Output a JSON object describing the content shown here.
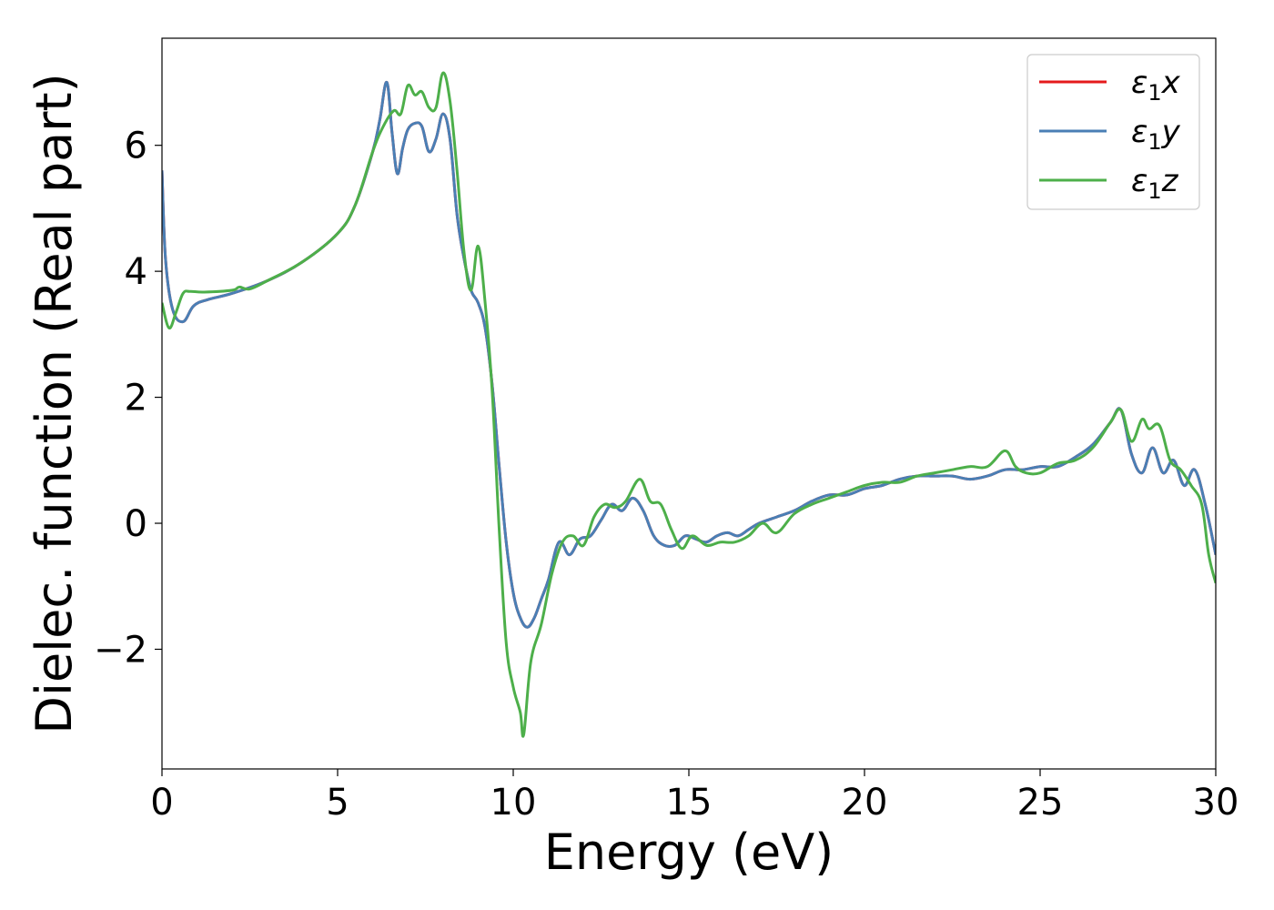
{
  "chart_data": {
    "type": "line",
    "title": "",
    "xlabel": "Energy (eV)",
    "ylabel": "Dielec. function (Real part)",
    "xlim": [
      0,
      30
    ],
    "ylim": [
      -3.9,
      7.7
    ],
    "xticks": [
      0,
      5,
      10,
      15,
      20,
      25,
      30
    ],
    "xtick_labels": [
      "0",
      "5",
      "10",
      "15",
      "20",
      "25",
      "30"
    ],
    "yticks": [
      -2,
      0,
      2,
      4,
      6
    ],
    "ytick_labels": [
      "−2",
      "0",
      "2",
      "4",
      "6"
    ],
    "grid": false,
    "legend_position": "top-right",
    "series": [
      {
        "name": "ε1x",
        "legend_main": "ε",
        "legend_sub": "1",
        "legend_var": "x",
        "color": "#e41a1c",
        "x": [
          0,
          0.1,
          0.3,
          0.6,
          0.9,
          1.3,
          2.0,
          3.0,
          4.0,
          5.0,
          5.5,
          6.0,
          6.2,
          6.4,
          6.55,
          6.7,
          6.85,
          7.0,
          7.2,
          7.4,
          7.6,
          7.8,
          8.0,
          8.2,
          8.4,
          8.6,
          8.8,
          9.0,
          9.2,
          9.4,
          9.6,
          9.8,
          10.0,
          10.2,
          10.4,
          10.6,
          10.8,
          11.0,
          11.3,
          11.6,
          11.9,
          12.2,
          12.5,
          12.8,
          13.1,
          13.4,
          13.7,
          14.0,
          14.3,
          14.6,
          14.9,
          15.2,
          15.5,
          15.8,
          16.1,
          16.4,
          16.7,
          17.0,
          17.5,
          18.0,
          18.5,
          19.0,
          19.5,
          20.0,
          20.5,
          21.0,
          21.5,
          22.0,
          22.5,
          23.0,
          23.5,
          24.0,
          24.5,
          25.0,
          25.5,
          26.0,
          26.5,
          27.0,
          27.3,
          27.6,
          27.9,
          28.2,
          28.5,
          28.8,
          29.1,
          29.4,
          29.7,
          30.0
        ],
        "values": [
          5.6,
          4.2,
          3.4,
          3.2,
          3.45,
          3.55,
          3.65,
          3.85,
          4.15,
          4.6,
          5.05,
          5.9,
          6.4,
          7.0,
          6.2,
          5.55,
          5.95,
          6.25,
          6.35,
          6.3,
          5.9,
          6.1,
          6.5,
          6.1,
          4.9,
          4.2,
          3.7,
          3.5,
          3.1,
          2.2,
          0.9,
          -0.3,
          -1.1,
          -1.5,
          -1.65,
          -1.5,
          -1.2,
          -0.9,
          -0.3,
          -0.5,
          -0.25,
          -0.2,
          0.05,
          0.3,
          0.2,
          0.4,
          0.2,
          -0.2,
          -0.35,
          -0.35,
          -0.2,
          -0.25,
          -0.3,
          -0.2,
          -0.15,
          -0.2,
          -0.1,
          0.0,
          0.1,
          0.2,
          0.35,
          0.45,
          0.45,
          0.55,
          0.6,
          0.7,
          0.75,
          0.75,
          0.75,
          0.7,
          0.75,
          0.85,
          0.85,
          0.9,
          0.9,
          1.05,
          1.25,
          1.6,
          1.8,
          1.1,
          0.8,
          1.2,
          0.8,
          1.0,
          0.6,
          0.85,
          0.3,
          -0.5
        ]
      },
      {
        "name": "ε1y",
        "legend_main": "ε",
        "legend_sub": "1",
        "legend_var": "y",
        "color": "#4a7fb5",
        "x": [
          0,
          0.1,
          0.3,
          0.6,
          0.9,
          1.3,
          2.0,
          3.0,
          4.0,
          5.0,
          5.5,
          6.0,
          6.2,
          6.4,
          6.55,
          6.7,
          6.85,
          7.0,
          7.2,
          7.4,
          7.6,
          7.8,
          8.0,
          8.2,
          8.4,
          8.6,
          8.8,
          9.0,
          9.2,
          9.4,
          9.6,
          9.8,
          10.0,
          10.2,
          10.4,
          10.6,
          10.8,
          11.0,
          11.3,
          11.6,
          11.9,
          12.2,
          12.5,
          12.8,
          13.1,
          13.4,
          13.7,
          14.0,
          14.3,
          14.6,
          14.9,
          15.2,
          15.5,
          15.8,
          16.1,
          16.4,
          16.7,
          17.0,
          17.5,
          18.0,
          18.5,
          19.0,
          19.5,
          20.0,
          20.5,
          21.0,
          21.5,
          22.0,
          22.5,
          23.0,
          23.5,
          24.0,
          24.5,
          25.0,
          25.5,
          26.0,
          26.5,
          27.0,
          27.3,
          27.6,
          27.9,
          28.2,
          28.5,
          28.8,
          29.1,
          29.4,
          29.7,
          30.0
        ],
        "values": [
          5.6,
          4.2,
          3.4,
          3.2,
          3.45,
          3.55,
          3.65,
          3.85,
          4.15,
          4.6,
          5.05,
          5.9,
          6.4,
          7.0,
          6.2,
          5.55,
          5.95,
          6.25,
          6.35,
          6.3,
          5.9,
          6.1,
          6.5,
          6.1,
          4.9,
          4.2,
          3.7,
          3.5,
          3.1,
          2.2,
          0.9,
          -0.3,
          -1.1,
          -1.5,
          -1.65,
          -1.5,
          -1.2,
          -0.9,
          -0.3,
          -0.5,
          -0.25,
          -0.2,
          0.05,
          0.3,
          0.2,
          0.4,
          0.2,
          -0.2,
          -0.35,
          -0.35,
          -0.2,
          -0.25,
          -0.3,
          -0.2,
          -0.15,
          -0.2,
          -0.1,
          0.0,
          0.1,
          0.2,
          0.35,
          0.45,
          0.45,
          0.55,
          0.6,
          0.7,
          0.75,
          0.75,
          0.75,
          0.7,
          0.75,
          0.85,
          0.85,
          0.9,
          0.9,
          1.05,
          1.25,
          1.6,
          1.8,
          1.1,
          0.8,
          1.2,
          0.8,
          1.0,
          0.6,
          0.85,
          0.3,
          -0.5
        ]
      },
      {
        "name": "ε1z",
        "legend_main": "ε",
        "legend_sub": "1",
        "legend_var": "z",
        "color": "#4daf4a",
        "x": [
          0,
          0.2,
          0.4,
          0.6,
          0.8,
          1.2,
          2.0,
          2.2,
          2.5,
          3.0,
          4.0,
          5.0,
          5.5,
          6.0,
          6.3,
          6.6,
          6.8,
          7.0,
          7.2,
          7.4,
          7.6,
          7.8,
          8.0,
          8.2,
          8.4,
          8.6,
          8.8,
          9.0,
          9.2,
          9.4,
          9.6,
          9.8,
          10.0,
          10.2,
          10.3,
          10.5,
          10.8,
          11.1,
          11.4,
          11.7,
          12.0,
          12.3,
          12.6,
          12.9,
          13.2,
          13.6,
          13.9,
          14.2,
          14.5,
          14.8,
          15.1,
          15.5,
          15.9,
          16.3,
          16.7,
          17.1,
          17.5,
          18.0,
          18.5,
          19.0,
          19.5,
          20.0,
          20.5,
          21.0,
          21.5,
          22.0,
          22.5,
          23.0,
          23.5,
          24.0,
          24.3,
          24.6,
          25.0,
          25.5,
          26.0,
          26.5,
          27.0,
          27.3,
          27.6,
          27.9,
          28.1,
          28.4,
          28.7,
          29.0,
          29.3,
          29.6,
          29.8,
          30.0
        ],
        "values": [
          3.5,
          3.1,
          3.35,
          3.65,
          3.68,
          3.67,
          3.7,
          3.75,
          3.72,
          3.85,
          4.15,
          4.6,
          5.05,
          5.9,
          6.3,
          6.55,
          6.5,
          6.95,
          6.8,
          6.85,
          6.6,
          6.6,
          7.15,
          6.7,
          5.6,
          4.3,
          3.7,
          4.4,
          3.5,
          2.1,
          -0.1,
          -1.9,
          -2.6,
          -3.0,
          -3.35,
          -2.2,
          -1.6,
          -0.8,
          -0.3,
          -0.2,
          -0.35,
          0.1,
          0.3,
          0.25,
          0.35,
          0.7,
          0.35,
          0.3,
          -0.1,
          -0.4,
          -0.2,
          -0.35,
          -0.3,
          -0.3,
          -0.2,
          0.0,
          -0.15,
          0.15,
          0.3,
          0.4,
          0.5,
          0.6,
          0.65,
          0.65,
          0.75,
          0.8,
          0.85,
          0.9,
          0.9,
          1.15,
          0.9,
          0.8,
          0.8,
          0.95,
          1.0,
          1.2,
          1.6,
          1.8,
          1.3,
          1.65,
          1.5,
          1.55,
          1.0,
          0.85,
          0.6,
          0.3,
          -0.5,
          -0.95
        ]
      }
    ]
  }
}
